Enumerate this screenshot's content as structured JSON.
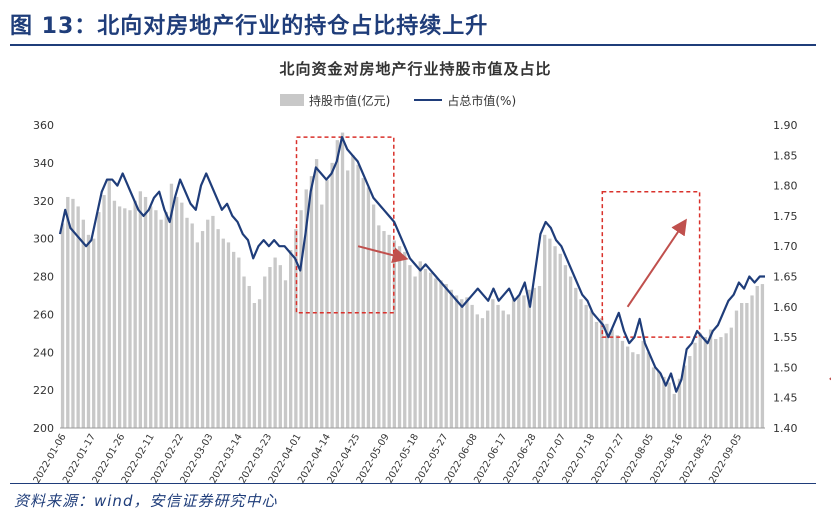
{
  "figure": {
    "title": "图 13：北向对房地产行业的持仓占比持续上升",
    "source": "资料来源：wind，安信证券研究中心"
  },
  "colors": {
    "title": "#1f3d7a",
    "bar": "#c8c8c8",
    "line": "#1f3d7a",
    "box": "#d9312b",
    "arrow": "#c0504d"
  },
  "chart_data": {
    "type": "bar+line",
    "title": "北向资金对房地产行业持股市值及占比",
    "legend": [
      "持股市值(亿元)",
      "占总市值(%)"
    ],
    "legend_position": "top",
    "grid": false,
    "y_left": {
      "min": 200,
      "max": 360,
      "ticks": [
        "200",
        "220",
        "240",
        "260",
        "280",
        "300",
        "320",
        "340",
        "360"
      ]
    },
    "y_right": {
      "min": 1.4,
      "max": 1.9,
      "ticks": [
        "1.40",
        "1.45",
        "1.50",
        "1.55",
        "1.60",
        "1.65",
        "1.70",
        "1.75",
        "1.80",
        "1.85",
        "1.90"
      ]
    },
    "x_tick_labels": [
      "2022-01-06",
      "2022-01-17",
      "2022-01-26",
      "2022-02-11",
      "2022-02-22",
      "2022-03-03",
      "2022-03-14",
      "2022-03-23",
      "2022-04-01",
      "2022-04-14",
      "2022-04-25",
      "2022-05-09",
      "2022-05-18",
      "2022-05-27",
      "2022-06-08",
      "2022-06-17",
      "2022-06-28",
      "2022-07-07",
      "2022-07-18",
      "2022-07-27",
      "2022-08-05",
      "2022-08-16",
      "2022-08-25",
      "2022-09-05"
    ],
    "bars": [
      308,
      322,
      321,
      317,
      310,
      302,
      300,
      314,
      323,
      331,
      320,
      317,
      316,
      315,
      320,
      325,
      322,
      317,
      315,
      310,
      314,
      329,
      322,
      319,
      311,
      308,
      298,
      304,
      310,
      312,
      305,
      300,
      298,
      293,
      290,
      280,
      275,
      266,
      268,
      280,
      285,
      290,
      286,
      278,
      294,
      305,
      315,
      326,
      333,
      342,
      318,
      331,
      340,
      352,
      356,
      336,
      344,
      339,
      332,
      327,
      318,
      307,
      304,
      302,
      299,
      296,
      293,
      286,
      280,
      288,
      284,
      282,
      279,
      278,
      276,
      273,
      270,
      268,
      269,
      265,
      260,
      258,
      262,
      268,
      265,
      262,
      260,
      268,
      270,
      270,
      273,
      274,
      275,
      302,
      300,
      296,
      292,
      286,
      280,
      274,
      268,
      265,
      262,
      256,
      258,
      255,
      252,
      249,
      246,
      243,
      240,
      239,
      246,
      240,
      232,
      230,
      227,
      224,
      218,
      226,
      233,
      238,
      245,
      250,
      248,
      252,
      247,
      248,
      250,
      253,
      262,
      266,
      266,
      270,
      275,
      276
    ],
    "line": [
      1.72,
      1.76,
      1.73,
      1.72,
      1.71,
      1.7,
      1.71,
      1.75,
      1.79,
      1.81,
      1.81,
      1.8,
      1.82,
      1.8,
      1.78,
      1.76,
      1.75,
      1.76,
      1.78,
      1.79,
      1.76,
      1.74,
      1.78,
      1.81,
      1.79,
      1.77,
      1.76,
      1.8,
      1.82,
      1.8,
      1.78,
      1.76,
      1.77,
      1.75,
      1.74,
      1.72,
      1.71,
      1.68,
      1.7,
      1.71,
      1.7,
      1.71,
      1.7,
      1.7,
      1.69,
      1.68,
      1.66,
      1.72,
      1.79,
      1.83,
      1.82,
      1.81,
      1.82,
      1.84,
      1.88,
      1.86,
      1.85,
      1.84,
      1.82,
      1.8,
      1.78,
      1.77,
      1.76,
      1.75,
      1.74,
      1.72,
      1.7,
      1.68,
      1.67,
      1.66,
      1.67,
      1.66,
      1.65,
      1.64,
      1.63,
      1.62,
      1.61,
      1.6,
      1.61,
      1.62,
      1.63,
      1.62,
      1.61,
      1.63,
      1.61,
      1.62,
      1.63,
      1.61,
      1.62,
      1.64,
      1.6,
      1.66,
      1.72,
      1.74,
      1.73,
      1.71,
      1.7,
      1.68,
      1.66,
      1.64,
      1.62,
      1.61,
      1.59,
      1.58,
      1.57,
      1.55,
      1.57,
      1.59,
      1.56,
      1.54,
      1.55,
      1.58,
      1.54,
      1.52,
      1.5,
      1.49,
      1.47,
      1.49,
      1.46,
      1.48,
      1.53,
      1.54,
      1.56,
      1.55,
      1.54,
      1.56,
      1.57,
      1.59,
      1.61,
      1.62,
      1.64,
      1.63,
      1.65,
      1.64,
      1.65,
      1.65
    ]
  }
}
